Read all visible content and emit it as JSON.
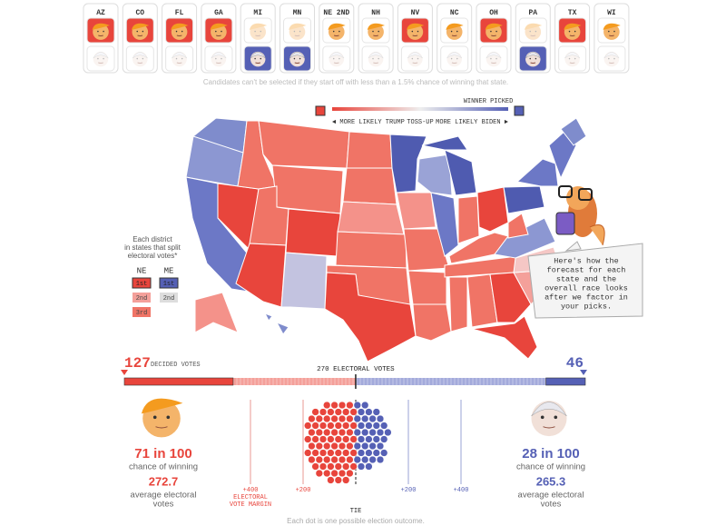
{
  "header": {
    "states": [
      {
        "code": "AZ",
        "pick": "trump"
      },
      {
        "code": "CO",
        "pick": "trump"
      },
      {
        "code": "FL",
        "pick": "trump"
      },
      {
        "code": "GA",
        "pick": "trump"
      },
      {
        "code": "MI",
        "pick": "biden"
      },
      {
        "code": "MN",
        "pick": "biden"
      },
      {
        "code": "NE 2ND",
        "pick": null
      },
      {
        "code": "NH",
        "pick": null
      },
      {
        "code": "NV",
        "pick": "trump"
      },
      {
        "code": "NC",
        "pick": null
      },
      {
        "code": "OH",
        "pick": "trump"
      },
      {
        "code": "PA",
        "pick": "biden"
      },
      {
        "code": "TX",
        "pick": "trump"
      },
      {
        "code": "WI",
        "pick": null
      }
    ],
    "note": "Candidates can't be selected if they start off with less than a 1.5% chance of winning that state."
  },
  "legend": {
    "winner_picked": "WINNER PICKED",
    "trump": "◄ MORE LIKELY TRUMP",
    "tossup": "TOSS-UP",
    "biden": "MORE LIKELY BIDEN ►"
  },
  "districts": {
    "note": [
      "Each district",
      "in states that split",
      "electoral votes*"
    ],
    "ne": {
      "name": "NE",
      "items": [
        "1st",
        "2nd",
        "3rd"
      ]
    },
    "me": {
      "name": "ME",
      "items": [
        "1st",
        "2nd"
      ]
    }
  },
  "bubble": [
    "Here's how the",
    "forecast for each",
    "state and the",
    "overall race looks",
    "after we factor in",
    "your picks."
  ],
  "electoral_bar": {
    "xlim": [
      0,
      538
    ],
    "trump_decided": 127,
    "decided_label": "DECIDED VOTES",
    "biden_decided": 46,
    "threshold": {
      "value": 270,
      "label": "270 ELECTORAL VOTES"
    }
  },
  "candidates": [
    {
      "chance": "71 in 100",
      "chance_label": "chance of winning",
      "average": 272.7,
      "average_label": [
        "average electoral",
        "votes"
      ]
    },
    {
      "chance": "28 in 100",
      "chance_label": "chance of winning",
      "average": 265.3,
      "average_label": [
        "average electoral",
        "votes"
      ]
    }
  ],
  "margin_axis": {
    "xlim": [
      -400,
      400
    ],
    "ticks": [
      {
        "value": -400,
        "label": "+400"
      },
      {
        "value": -200,
        "label": "+200"
      },
      {
        "value": 0,
        "label": "TIE"
      },
      {
        "value": 200,
        "label": "+200"
      },
      {
        "value": 400,
        "label": "+400"
      }
    ],
    "title": [
      "ELECTORAL",
      "VOTE MARGIN"
    ]
  },
  "footer": "Each dot is one possible election outcome."
}
